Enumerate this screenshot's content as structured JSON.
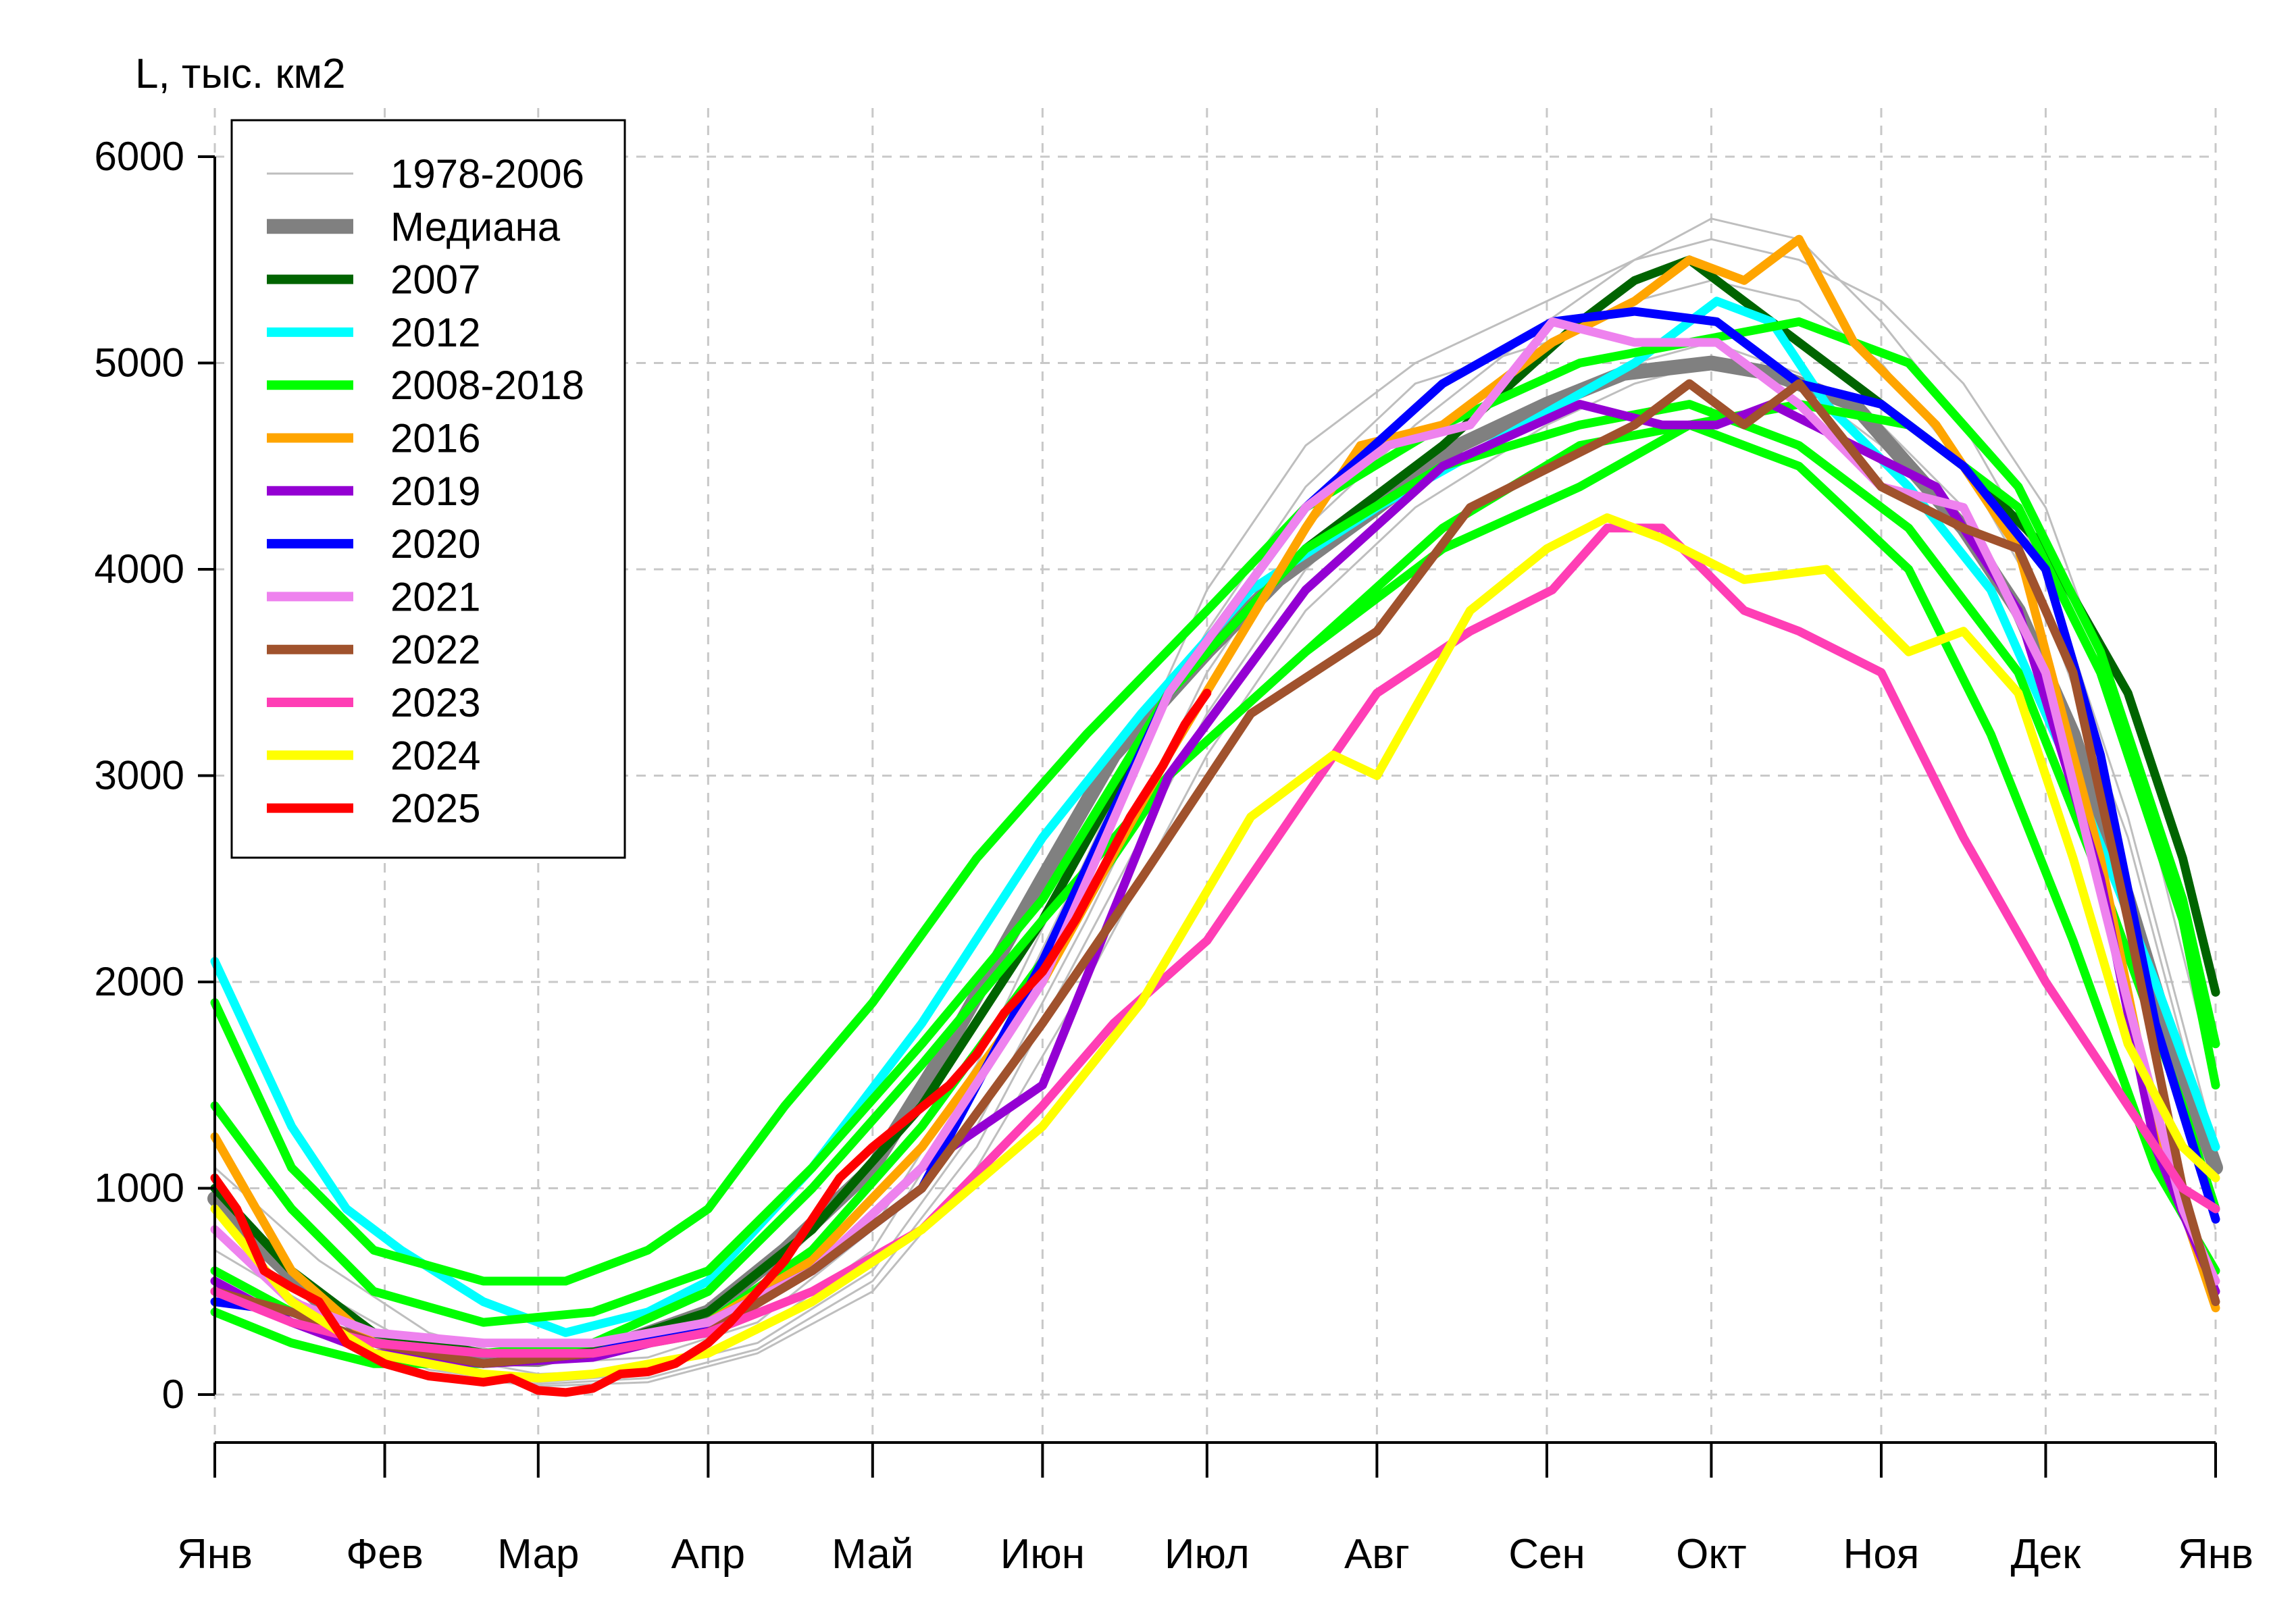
{
  "chart_data": {
    "type": "line",
    "ylabel": "L, тыс. км2",
    "xlabel": "",
    "title": "",
    "x_unit": "day_of_year",
    "xlim": [
      1,
      366
    ],
    "ylim": [
      -100,
      6300
    ],
    "yticks": [
      0,
      1000,
      2000,
      3000,
      4000,
      5000,
      6000
    ],
    "month_ticks": [
      {
        "label": "Янв",
        "day": 1
      },
      {
        "label": "Фев",
        "day": 32
      },
      {
        "label": "Мар",
        "day": 60
      },
      {
        "label": "Апр",
        "day": 91
      },
      {
        "label": "Май",
        "day": 121
      },
      {
        "label": "Июн",
        "day": 152
      },
      {
        "label": "Июл",
        "day": 182
      },
      {
        "label": "Авг",
        "day": 213
      },
      {
        "label": "Сен",
        "day": 244
      },
      {
        "label": "Окт",
        "day": 274
      },
      {
        "label": "Ноя",
        "day": 305
      },
      {
        "label": "Дек",
        "day": 335
      },
      {
        "label": "Янв",
        "day": 366
      }
    ],
    "grid": true,
    "legend_position": "top-left",
    "legend": [
      {
        "label": "1978-2006",
        "color": "#bebebe",
        "style": "thin"
      },
      {
        "label": "Медиана",
        "color": "#808080",
        "style": "thick"
      },
      {
        "label": "2007",
        "color": "#006400",
        "style": "bold"
      },
      {
        "label": "2012",
        "color": "#00ffff",
        "style": "bold"
      },
      {
        "label": "2008-2018",
        "color": "#00ff00",
        "style": "bold"
      },
      {
        "label": "2016",
        "color": "#ffa500",
        "style": "bold"
      },
      {
        "label": "2019",
        "color": "#9400d3",
        "style": "bold"
      },
      {
        "label": "2020",
        "color": "#0000ff",
        "style": "bold"
      },
      {
        "label": "2021",
        "color": "#ee82ee",
        "style": "bold"
      },
      {
        "label": "2022",
        "color": "#a0522d",
        "style": "bold"
      },
      {
        "label": "2023",
        "color": "#ff3eb5",
        "style": "bold"
      },
      {
        "label": "2024",
        "color": "#ffff00",
        "style": "bold"
      },
      {
        "label": "2025",
        "color": "#ff0000",
        "style": "bold"
      }
    ],
    "background_series": {
      "name": "1978-2006",
      "color": "#bebebe",
      "x": [
        1,
        20,
        40,
        60,
        80,
        100,
        121,
        140,
        160,
        182,
        200,
        220,
        244,
        260,
        274,
        290,
        305,
        320,
        335,
        350,
        366
      ],
      "lines": [
        [
          900,
          500,
          200,
          100,
          120,
          250,
          600,
          1300,
          2300,
          3500,
          4200,
          4700,
          5200,
          5500,
          5700,
          5600,
          5200,
          4700,
          4000,
          2800,
          1200
        ],
        [
          700,
          400,
          150,
          60,
          100,
          300,
          700,
          1500,
          2600,
          3900,
          4600,
          5000,
          5300,
          5500,
          5600,
          5500,
          5300,
          4900,
          4300,
          3200,
          1500
        ],
        [
          500,
          300,
          100,
          40,
          60,
          200,
          500,
          1100,
          2000,
          3100,
          3800,
          4300,
          4700,
          4900,
          5000,
          4900,
          4600,
          4200,
          3500,
          2300,
          800
        ],
        [
          1100,
          650,
          300,
          150,
          180,
          350,
          800,
          1600,
          2700,
          3700,
          4400,
          4900,
          5100,
          5300,
          5400,
          5300,
          5000,
          4500,
          3800,
          2700,
          1100
        ],
        [
          600,
          350,
          120,
          50,
          80,
          220,
          550,
          1200,
          2200,
          3300,
          4000,
          4500,
          4800,
          5000,
          5100,
          4950,
          4700,
          4300,
          3600,
          2400,
          900
        ]
      ]
    },
    "series": [
      {
        "name": "Медиана",
        "color": "#808080",
        "x": [
          1,
          10,
          20,
          32,
          45,
          60,
          75,
          91,
          105,
          121,
          135,
          152,
          165,
          182,
          195,
          213,
          228,
          244,
          258,
          274,
          285,
          300,
          310,
          320,
          330,
          340,
          350,
          358,
          366
        ],
        "y": [
          950,
          700,
          450,
          250,
          180,
          170,
          250,
          400,
          700,
          1100,
          1700,
          2500,
          3100,
          3600,
          3950,
          4300,
          4600,
          4800,
          4950,
          5000,
          4950,
          4800,
          4500,
          4200,
          3800,
          3200,
          2400,
          1700,
          1100
        ]
      },
      {
        "name": "2007",
        "color": "#006400",
        "x": [
          1,
          15,
          30,
          50,
          70,
          91,
          110,
          130,
          152,
          175,
          200,
          225,
          250,
          260,
          270,
          280,
          290,
          300,
          320,
          335,
          350,
          360,
          366
        ],
        "y": [
          1000,
          600,
          300,
          200,
          220,
          400,
          800,
          1400,
          2300,
          3400,
          4100,
          4600,
          5200,
          5400,
          5500,
          5300,
          5100,
          4900,
          4500,
          4100,
          3400,
          2600,
          1950
        ]
      },
      {
        "name": "2012",
        "color": "#00ffff",
        "x": [
          1,
          8,
          15,
          25,
          35,
          50,
          65,
          80,
          91,
          110,
          130,
          152,
          170,
          190,
          213,
          240,
          260,
          275,
          285,
          295,
          310,
          325,
          340,
          355,
          366
        ],
        "y": [
          2100,
          1700,
          1300,
          900,
          700,
          450,
          300,
          400,
          550,
          1100,
          1800,
          2700,
          3300,
          3900,
          4300,
          4700,
          5000,
          5300,
          5200,
          4800,
          4400,
          3900,
          3000,
          2000,
          1200
        ]
      },
      {
        "name": "2008-2018",
        "color": "#00ff00",
        "x": [
          1,
          15,
          30,
          50,
          65,
          80,
          91,
          105,
          121,
          140,
          160,
          182,
          200,
          225,
          250,
          270,
          290,
          310,
          330,
          345,
          360,
          366
        ],
        "y": [
          1900,
          1100,
          700,
          550,
          550,
          700,
          900,
          1400,
          1900,
          2600,
          3200,
          3800,
          4300,
          4700,
          5000,
          5100,
          5200,
          5000,
          4400,
          3600,
          2400,
          1700
        ]
      },
      {
        "name": "2008-2018",
        "color": "#00ff00",
        "x": [
          1,
          15,
          30,
          50,
          70,
          91,
          110,
          130,
          152,
          175,
          200,
          225,
          250,
          270,
          290,
          310,
          330,
          345,
          360,
          366
        ],
        "y": [
          600,
          400,
          250,
          200,
          250,
          500,
          1000,
          1600,
          2300,
          3000,
          3600,
          4100,
          4400,
          4700,
          4800,
          4700,
          4300,
          3500,
          2300,
          1500
        ]
      },
      {
        "name": "2008-2018",
        "color": "#00ff00",
        "x": [
          1,
          15,
          30,
          50,
          70,
          91,
          110,
          130,
          152,
          175,
          200,
          225,
          250,
          270,
          290,
          310,
          330,
          345,
          360,
          366
        ],
        "y": [
          1400,
          900,
          500,
          350,
          400,
          600,
          1100,
          1700,
          2400,
          3400,
          4100,
          4500,
          4700,
          4800,
          4600,
          4200,
          3500,
          2500,
          1400,
          900
        ]
      },
      {
        "name": "2008-2018",
        "color": "#00ff00",
        "x": [
          1,
          15,
          30,
          50,
          70,
          91,
          110,
          130,
          152,
          175,
          200,
          225,
          250,
          270,
          290,
          310,
          325,
          340,
          355,
          366
        ],
        "y": [
          400,
          250,
          150,
          150,
          200,
          350,
          700,
          1300,
          2100,
          3000,
          3600,
          4200,
          4600,
          4700,
          4500,
          4000,
          3200,
          2200,
          1100,
          600
        ]
      },
      {
        "name": "2016",
        "color": "#ffa500",
        "x": [
          1,
          15,
          30,
          50,
          70,
          91,
          110,
          130,
          152,
          175,
          200,
          210,
          225,
          245,
          260,
          270,
          280,
          290,
          300,
          315,
          330,
          345,
          355,
          366
        ],
        "y": [
          1250,
          600,
          250,
          150,
          200,
          350,
          650,
          1200,
          2000,
          3100,
          4200,
          4600,
          4700,
          5100,
          5300,
          5500,
          5400,
          5600,
          5100,
          4700,
          4100,
          2600,
          1300,
          420
        ]
      },
      {
        "name": "2019",
        "color": "#9400d3",
        "x": [
          1,
          15,
          30,
          50,
          70,
          91,
          110,
          130,
          152,
          175,
          200,
          225,
          250,
          265,
          275,
          285,
          300,
          315,
          330,
          345,
          355,
          366
        ],
        "y": [
          550,
          350,
          200,
          150,
          180,
          320,
          600,
          1100,
          1500,
          3000,
          3900,
          4500,
          4800,
          4700,
          4700,
          4800,
          4600,
          4400,
          3800,
          2500,
          1200,
          500
        ]
      },
      {
        "name": "2020",
        "color": "#0000ff",
        "x": [
          1,
          15,
          30,
          50,
          70,
          91,
          110,
          130,
          152,
          175,
          200,
          225,
          245,
          260,
          275,
          290,
          305,
          320,
          335,
          345,
          355,
          366
        ],
        "y": [
          450,
          400,
          250,
          150,
          200,
          350,
          600,
          1000,
          2100,
          3400,
          4300,
          4900,
          5200,
          5250,
          5200,
          4900,
          4800,
          4500,
          4000,
          3100,
          1800,
          850
        ]
      },
      {
        "name": "2021",
        "color": "#ee82ee",
        "x": [
          1,
          15,
          30,
          50,
          70,
          91,
          110,
          130,
          152,
          175,
          200,
          215,
          230,
          245,
          260,
          275,
          290,
          305,
          320,
          335,
          350,
          360,
          366
        ],
        "y": [
          800,
          450,
          300,
          250,
          250,
          350,
          600,
          1100,
          2000,
          3400,
          4300,
          4600,
          4700,
          5200,
          5100,
          5100,
          4800,
          4400,
          4300,
          3500,
          1900,
          900,
          550
        ]
      },
      {
        "name": "2022",
        "color": "#a0522d",
        "x": [
          1,
          15,
          30,
          50,
          70,
          91,
          110,
          130,
          152,
          170,
          190,
          213,
          230,
          245,
          260,
          270,
          280,
          290,
          305,
          320,
          330,
          340,
          350,
          360,
          366
        ],
        "y": [
          500,
          400,
          250,
          150,
          200,
          300,
          600,
          1000,
          1800,
          2500,
          3300,
          3700,
          4300,
          4500,
          4700,
          4900,
          4700,
          4900,
          4400,
          4200,
          4100,
          3500,
          2300,
          1000,
          450
        ]
      },
      {
        "name": "2023",
        "color": "#ff3eb5",
        "x": [
          1,
          15,
          30,
          50,
          70,
          91,
          110,
          130,
          152,
          165,
          182,
          200,
          213,
          230,
          245,
          255,
          265,
          280,
          290,
          305,
          320,
          335,
          350,
          360,
          366
        ],
        "y": [
          500,
          350,
          250,
          200,
          200,
          300,
          500,
          800,
          1400,
          1800,
          2200,
          2900,
          3400,
          3700,
          3900,
          4200,
          4200,
          3800,
          3700,
          3500,
          2700,
          2000,
          1400,
          1000,
          900
        ]
      },
      {
        "name": "2024",
        "color": "#ffff00",
        "x": [
          1,
          15,
          30,
          50,
          60,
          70,
          91,
          110,
          130,
          152,
          170,
          190,
          205,
          213,
          230,
          244,
          255,
          265,
          280,
          295,
          310,
          320,
          330,
          340,
          350,
          360,
          366
        ],
        "y": [
          900,
          450,
          200,
          100,
          80,
          100,
          200,
          450,
          800,
          1300,
          1900,
          2800,
          3100,
          3000,
          3800,
          4100,
          4250,
          4150,
          3950,
          4000,
          3600,
          3700,
          3400,
          2600,
          1700,
          1200,
          1050
        ]
      },
      {
        "name": "2025",
        "color": "#ff0000",
        "x": [
          1,
          5,
          10,
          15,
          20,
          25,
          32,
          40,
          50,
          55,
          60,
          65,
          70,
          75,
          80,
          85,
          91,
          95,
          100,
          105,
          110,
          115,
          121,
          128,
          135,
          140,
          145,
          152,
          158,
          163,
          168,
          174,
          178,
          182
        ],
        "y": [
          1050,
          900,
          600,
          520,
          450,
          250,
          150,
          90,
          60,
          80,
          20,
          10,
          30,
          100,
          110,
          150,
          250,
          350,
          500,
          650,
          850,
          1050,
          1200,
          1350,
          1500,
          1650,
          1850,
          2050,
          2300,
          2550,
          2800,
          3050,
          3250,
          3400
        ]
      }
    ]
  }
}
